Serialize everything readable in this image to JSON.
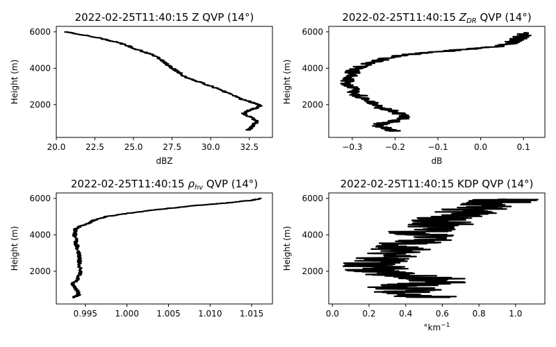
{
  "chart_data": [
    {
      "type": "line",
      "title": "2022-02-25T11:40:15 Z QVP (14°)",
      "xlabel": "dBZ",
      "ylabel": "Height (m)",
      "xlim": [
        20.0,
        34.0
      ],
      "ylim": [
        200,
        6300
      ],
      "xticks": [
        "20.0",
        "22.5",
        "25.0",
        "27.5",
        "30.0",
        "32.5"
      ],
      "xtick_values": [
        20.0,
        22.5,
        25.0,
        27.5,
        30.0,
        32.5
      ],
      "yticks": [
        "2000",
        "4000",
        "6000"
      ],
      "ytick_values": [
        2000,
        4000,
        6000
      ],
      "grid": false,
      "series": [
        {
          "noise": 0.15,
          "x": [
            32.4,
            32.6,
            32.8,
            33.0,
            32.6,
            32.1,
            32.5,
            33.1,
            33.2,
            32.8,
            32.0,
            31.2,
            30.4,
            29.4,
            28.4,
            27.9,
            27.5,
            27.2,
            26.9,
            26.5,
            25.7,
            25.0,
            24.6,
            23.8,
            22.6,
            21.3,
            20.6
          ],
          "y": [
            600,
            700,
            900,
            1100,
            1300,
            1500,
            1700,
            1850,
            1950,
            2100,
            2300,
            2600,
            2900,
            3200,
            3500,
            3800,
            4000,
            4200,
            4400,
            4650,
            4900,
            5100,
            5250,
            5450,
            5700,
            5900,
            6000
          ]
        }
      ]
    },
    {
      "type": "line",
      "title_prefix": "2022-02-25T11:40:15 ",
      "title_var": "Z",
      "title_sub": "DR",
      "title_suffix": " QVP (14°)",
      "xlabel": "dB",
      "ylabel": "Height (m)",
      "xlim": [
        -0.355,
        0.15
      ],
      "ylim": [
        200,
        6300
      ],
      "xticks": [
        "−0.3",
        "−0.2",
        "−0.1",
        "0.0",
        "0.1"
      ],
      "xtick_values": [
        -0.3,
        -0.2,
        -0.1,
        0.0,
        0.1
      ],
      "yticks": [
        "2000",
        "4000",
        "6000"
      ],
      "ytick_values": [
        2000,
        4000,
        6000
      ],
      "grid": false,
      "series": [
        {
          "noise": 0.02,
          "x": [
            -0.2,
            -0.22,
            -0.24,
            -0.2,
            -0.17,
            -0.19,
            -0.22,
            -0.25,
            -0.27,
            -0.29,
            -0.3,
            -0.31,
            -0.31,
            -0.3,
            -0.29,
            -0.27,
            -0.24,
            -0.21,
            -0.17,
            -0.1,
            -0.03,
            0.04,
            0.07,
            0.08,
            0.09,
            0.1,
            0.1
          ],
          "y": [
            550,
            700,
            900,
            1100,
            1300,
            1500,
            1750,
            2000,
            2300,
            2600,
            2900,
            3200,
            3500,
            3800,
            4000,
            4200,
            4400,
            4600,
            4750,
            4900,
            5050,
            5200,
            5350,
            5500,
            5650,
            5800,
            5950
          ]
        }
      ]
    },
    {
      "type": "line",
      "title_prefix": "2022-02-25T11:40:15 ",
      "title_var": "ρ",
      "title_sub": "hv",
      "title_suffix": " QVP (14°)",
      "xlabel": "",
      "ylabel": "Height (m)",
      "xlim": [
        0.9915,
        1.0175
      ],
      "ylim": [
        200,
        6300
      ],
      "xticks": [
        "0.995",
        "1.000",
        "1.005",
        "1.010",
        "1.015"
      ],
      "xtick_values": [
        0.995,
        1.0,
        1.005,
        1.01,
        1.015
      ],
      "yticks": [
        "2000",
        "4000",
        "6000"
      ],
      "ytick_values": [
        2000,
        4000,
        6000
      ],
      "grid": false,
      "series": [
        {
          "noise": 0.00025,
          "x": [
            0.9935,
            0.9942,
            0.9941,
            0.9937,
            0.9934,
            0.994,
            0.9943,
            0.9944,
            0.9943,
            0.9943,
            0.9942,
            0.9941,
            0.9939,
            0.9938,
            0.9937,
            0.9938,
            0.9945,
            0.9955,
            0.996,
            0.9975,
            1.0005,
            1.004,
            1.008,
            1.012,
            1.015,
            1.0162
          ],
          "y": [
            550,
            700,
            900,
            1100,
            1300,
            1500,
            1750,
            2000,
            2300,
            2600,
            2900,
            3200,
            3500,
            3800,
            4100,
            4300,
            4500,
            4650,
            4800,
            5000,
            5200,
            5400,
            5600,
            5750,
            5900,
            6000
          ]
        }
      ]
    },
    {
      "type": "line",
      "title": "2022-02-25T11:40:15 KDP QVP (14°)",
      "xlabel_base": "°km",
      "xlabel_sup": "−1",
      "ylabel": "Height (m)",
      "xlim": [
        -0.02,
        1.16
      ],
      "ylim": [
        200,
        6300
      ],
      "xticks": [
        "0.0",
        "0.2",
        "0.4",
        "0.6",
        "0.8",
        "1.0"
      ],
      "xtick_values": [
        0.0,
        0.2,
        0.4,
        0.6,
        0.8,
        1.0
      ],
      "yticks": [
        "2000",
        "4000",
        "6000"
      ],
      "ytick_values": [
        2000,
        4000,
        6000
      ],
      "grid": false,
      "series": [
        {
          "noise": 0.18,
          "x": [
            0.6,
            0.35,
            0.45,
            0.35,
            0.55,
            0.6,
            0.4,
            0.25,
            0.25,
            0.2,
            0.28,
            0.35,
            0.38,
            0.45,
            0.52,
            0.45,
            0.55,
            0.6,
            0.62,
            0.7,
            0.75,
            0.8,
            0.88,
            0.92,
            0.95
          ],
          "y": [
            550,
            750,
            950,
            1150,
            1350,
            1550,
            1750,
            1950,
            2150,
            2400,
            2700,
            3000,
            3300,
            3600,
            3900,
            4100,
            4300,
            4600,
            4900,
            5100,
            5300,
            5500,
            5700,
            5850,
            5950
          ]
        }
      ]
    }
  ]
}
